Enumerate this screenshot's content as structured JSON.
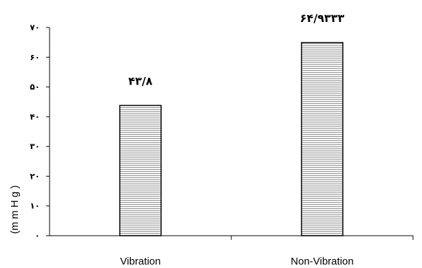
{
  "chart_data": {
    "type": "bar",
    "categories": [
      "Vibration",
      "Non-Vibration"
    ],
    "values": [
      43.8,
      64.9333
    ],
    "data_labels": [
      "۴۳/۸",
      "۶۴/۹۳۳۳"
    ],
    "title": "",
    "xlabel": "",
    "ylabel": "(m m H g )",
    "ylim": [
      0,
      70
    ],
    "yticks": [
      0,
      10,
      20,
      30,
      40,
      50,
      60,
      70
    ],
    "ytick_labels": [
      "٠",
      "١٠",
      "٢٠",
      "٣٠",
      "۴٠",
      "۵٠",
      "۶٠",
      "٧٠"
    ],
    "grid": false,
    "legend": "none",
    "bar_fill": "horizontal-stripes",
    "colors": {
      "bar_stroke": "#000000",
      "stripe": "#9a9a9a",
      "background": "#ffffff"
    }
  }
}
